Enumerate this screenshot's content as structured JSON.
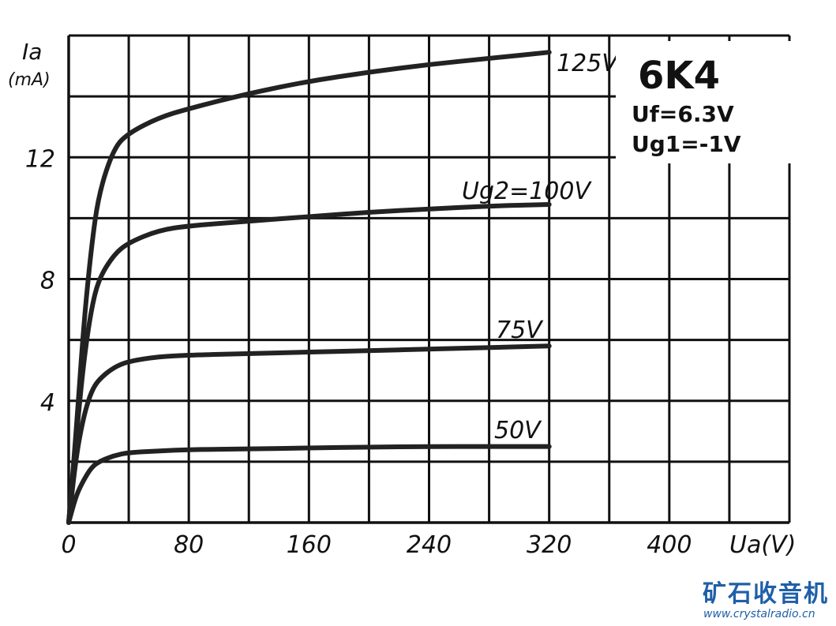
{
  "chart_data": {
    "type": "line",
    "title": "6K4",
    "conditions": [
      "Uf=6.3V",
      "Ug1=-1V"
    ],
    "ylabel": "Ia",
    "yunit": "(mA)",
    "xlabel": "Ua(V)",
    "xlim": [
      0,
      480
    ],
    "ylim": [
      0,
      16
    ],
    "xticks": [
      "0",
      "80",
      "160",
      "240",
      "320",
      "400"
    ],
    "yticks": [
      "4",
      "8",
      "12"
    ],
    "grid": true,
    "series": [
      {
        "name": "125V",
        "x": [
          0,
          5,
          10,
          15,
          20,
          30,
          40,
          60,
          80,
          120,
          160,
          200,
          240,
          280,
          320
        ],
        "y": [
          0,
          3,
          6.5,
          9,
          10.8,
          12.3,
          12.8,
          13.3,
          13.6,
          14.1,
          14.5,
          14.8,
          15.05,
          15.25,
          15.45
        ]
      },
      {
        "name": "Ug2=100V",
        "x": [
          0,
          5,
          10,
          15,
          20,
          30,
          40,
          60,
          80,
          120,
          160,
          200,
          240,
          280,
          320
        ],
        "y": [
          0,
          2.8,
          5.3,
          7,
          8,
          8.8,
          9.2,
          9.6,
          9.75,
          9.9,
          10.05,
          10.2,
          10.3,
          10.4,
          10.45
        ]
      },
      {
        "name": "75V",
        "x": [
          0,
          5,
          10,
          15,
          20,
          30,
          40,
          60,
          80,
          120,
          160,
          200,
          240,
          280,
          320
        ],
        "y": [
          0,
          2.2,
          3.5,
          4.3,
          4.7,
          5.1,
          5.3,
          5.45,
          5.5,
          5.55,
          5.6,
          5.65,
          5.7,
          5.75,
          5.8
        ]
      },
      {
        "name": "50V",
        "x": [
          0,
          5,
          10,
          15,
          20,
          30,
          40,
          60,
          80,
          120,
          160,
          200,
          240,
          280,
          320
        ],
        "y": [
          0,
          0.9,
          1.4,
          1.8,
          2.0,
          2.2,
          2.3,
          2.35,
          2.4,
          2.42,
          2.45,
          2.48,
          2.5,
          2.5,
          2.5
        ]
      }
    ]
  },
  "watermark": {
    "name": "矿石收音机",
    "url": "www.crystalradio.cn",
    "color": "#1f5fa8"
  }
}
